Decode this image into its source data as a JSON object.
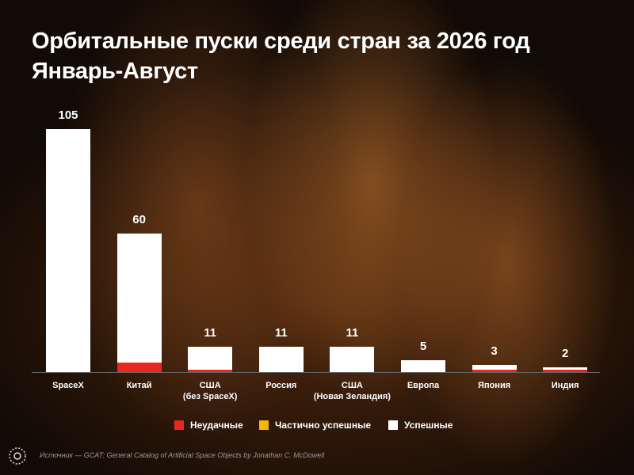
{
  "chart_data": {
    "type": "stacked_bar",
    "title": "Орбитальные пуски среди стран за 2026 год",
    "subtitle": "Январь-Август",
    "categories": [
      "SpaceX",
      "Китай",
      "США\n(без SpaceX)",
      "Россия",
      "США\n(Новая Зеландия)",
      "Европа",
      "Япония",
      "Индия"
    ],
    "series": [
      {
        "name": "Неудачные",
        "color": "#e8281e",
        "values": [
          0,
          4,
          1,
          0,
          0,
          0,
          1,
          1
        ]
      },
      {
        "name": "Частично успешные",
        "color": "#f5b800",
        "values": [
          0,
          0,
          0,
          0,
          0,
          0,
          0,
          0
        ]
      },
      {
        "name": "Успешные",
        "color": "#ffffff",
        "values": [
          105,
          56,
          10,
          11,
          11,
          5,
          2,
          1
        ]
      }
    ],
    "totals": [
      105,
      60,
      11,
      11,
      11,
      5,
      3,
      2
    ],
    "legend": "bottom",
    "source": "Источник — GCAT: General Catalog of Artificial Space Objects by Jonathan C. McDowell"
  }
}
